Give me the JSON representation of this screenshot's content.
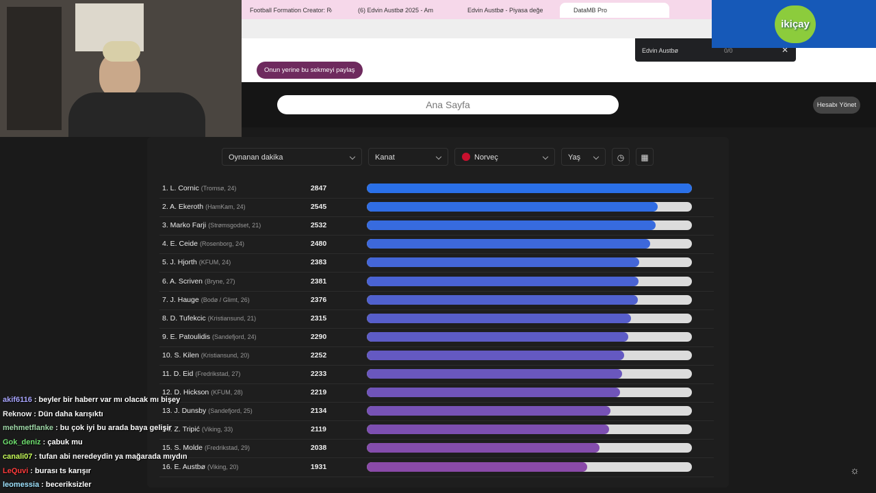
{
  "browser": {
    "tabs": [
      "Football Formation Creator: Re",
      "(6) Edvin Austbø 2025 - Am",
      "Edvin Austbø - Piyasa değeri ge",
      "DataMB Pro"
    ],
    "share_button": "Onun yerine bu sekmeyi paylaş",
    "find_bar": {
      "query": "Edvin Austbø",
      "count": "0/0"
    }
  },
  "logo": "ikiçay",
  "page": {
    "search": "Ana Sayfa",
    "account_button": "Hesabı Yönet",
    "filters": [
      "Oynanan dakika",
      "Kanat",
      "Norveç",
      "Yaş"
    ],
    "rows": [
      {
        "label": "1. L. Cornic",
        "detail": "(Tromsø, 24)",
        "value": 2847
      },
      {
        "label": "2. A. Ekeroth",
        "detail": "(HamKam, 24)",
        "value": 2545
      },
      {
        "label": "3. Marko Farji",
        "detail": "(Strømsgodset, 21)",
        "value": 2532
      },
      {
        "label": "4. E. Ceide",
        "detail": "(Rosenborg, 24)",
        "value": 2480
      },
      {
        "label": "5. J. Hjorth",
        "detail": "(KFUM, 24)",
        "value": 2383
      },
      {
        "label": "6. A. Scriven",
        "detail": "(Bryne, 27)",
        "value": 2381
      },
      {
        "label": "7. J. Hauge",
        "detail": "(Bodø / Glimt, 26)",
        "value": 2376
      },
      {
        "label": "8. D. Tufekcic",
        "detail": "(Kristiansund, 21)",
        "value": 2315
      },
      {
        "label": "9. E. Patoulidis",
        "detail": "(Sandefjord, 24)",
        "value": 2290
      },
      {
        "label": "10. S. Kilen",
        "detail": "(Kristiansund, 20)",
        "value": 2252
      },
      {
        "label": "11. D. Eid",
        "detail": "(Fredrikstad, 27)",
        "value": 2233
      },
      {
        "label": "12. D. Hickson",
        "detail": "(KFUM, 28)",
        "value": 2219
      },
      {
        "label": "13. J. Dunsby",
        "detail": "(Sandefjord, 25)",
        "value": 2134
      },
      {
        "label": "14. Z. Tripić",
        "detail": "(Viking, 33)",
        "value": 2119
      },
      {
        "label": "15. S. Molde",
        "detail": "(Fredrikstad, 29)",
        "value": 2038
      },
      {
        "label": "16. E. Austbø",
        "detail": "(Viking, 20)",
        "value": 1931
      }
    ]
  },
  "chat": [
    {
      "user": "akif6116",
      "color": "#a9a6ff",
      "message": ": beyler bir haberr var mı olacak mı bişey"
    },
    {
      "user": "Reknow",
      "color": "#f2f2f2",
      "message": ": Dün daha karışıktı"
    },
    {
      "user": "mehmetflanke",
      "color": "#9fd8a8",
      "message": ": bu çok iyi bu arada baya gelişir"
    },
    {
      "user": "Gok_deniz",
      "color": "#6fe06f",
      "message": ": çabuk mu"
    },
    {
      "user": "canali07",
      "color": "#c8ff5a",
      "message": ": tufan abi neredeydin ya mağarada mıydın"
    },
    {
      "user": "LeQuvi",
      "color": "#ff3b3b",
      "message": ": burası ts karışır"
    },
    {
      "user": "leomessia",
      "color": "#9fe3ff",
      "message": ": beceriksizler"
    }
  ]
}
